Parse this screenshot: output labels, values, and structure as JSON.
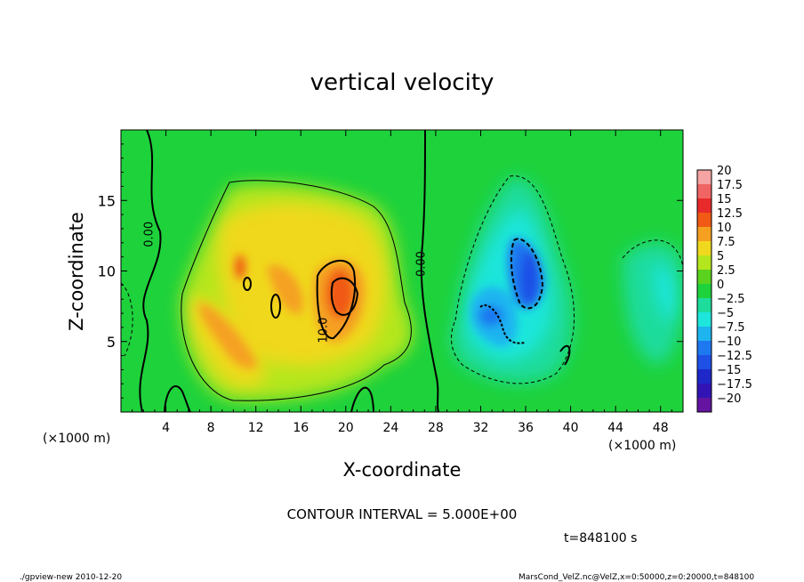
{
  "chart_data": {
    "type": "heatmap",
    "title": "vertical velocity",
    "xlabel": "X-coordinate",
    "ylabel": "Z-coordinate",
    "x_unit_left": "(×1000 m)",
    "x_unit_right": "(×1000 m)",
    "xlim": [
      0,
      50
    ],
    "ylim": [
      0,
      20
    ],
    "x_ticks": [
      4,
      8,
      12,
      16,
      20,
      24,
      28,
      32,
      36,
      40,
      44,
      48
    ],
    "y_ticks": [
      5,
      10,
      15
    ],
    "contour_interval_text": "CONTOUR INTERVAL = 5.000E+00",
    "time_text": "t=848100 s",
    "contour_labels": [
      {
        "text": "0.00",
        "x": 2.8,
        "z": 12.6
      },
      {
        "text": "0.00",
        "x": 27.0,
        "z": 10.5
      },
      {
        "text": "10.0",
        "x": 18.3,
        "z": 5.8
      }
    ],
    "colorbar": {
      "levels": [
        20,
        17.5,
        15,
        12.5,
        10,
        7.5,
        5,
        2.5,
        0,
        -2.5,
        -5,
        -7.5,
        -10,
        -12.5,
        -15,
        -17.5,
        -20
      ],
      "labels": [
        "20",
        "17.5",
        "15",
        "12.5",
        "10",
        "7.5",
        "5",
        "2.5",
        "0",
        "−2.5",
        "−5",
        "−7.5",
        "−10",
        "−12.5",
        "−15",
        "−17.5",
        "−20"
      ],
      "colors": [
        "#f5a3a3",
        "#f06464",
        "#e82a2a",
        "#f05a14",
        "#f5a020",
        "#f0d81e",
        "#b4e61e",
        "#5ad21e",
        "#1ed23c",
        "#1edc9c",
        "#1ee6dc",
        "#1eb4f0",
        "#1e78f0",
        "#1e50e6",
        "#1e28c8",
        "#3214b4",
        "#6414a0"
      ]
    },
    "regions": [
      {
        "type": "updraft",
        "x": [
          7,
          24
        ],
        "z": [
          2,
          17
        ],
        "peak": 11
      },
      {
        "type": "downdraft",
        "x": [
          30,
          40
        ],
        "z": [
          2,
          16
        ],
        "peak": -12
      }
    ]
  },
  "footer": {
    "left": "./gpview-new   2010-12-20",
    "right": "MarsCond_VelZ.nc@VelZ,x=0:50000,z=0:20000,t=848100"
  }
}
